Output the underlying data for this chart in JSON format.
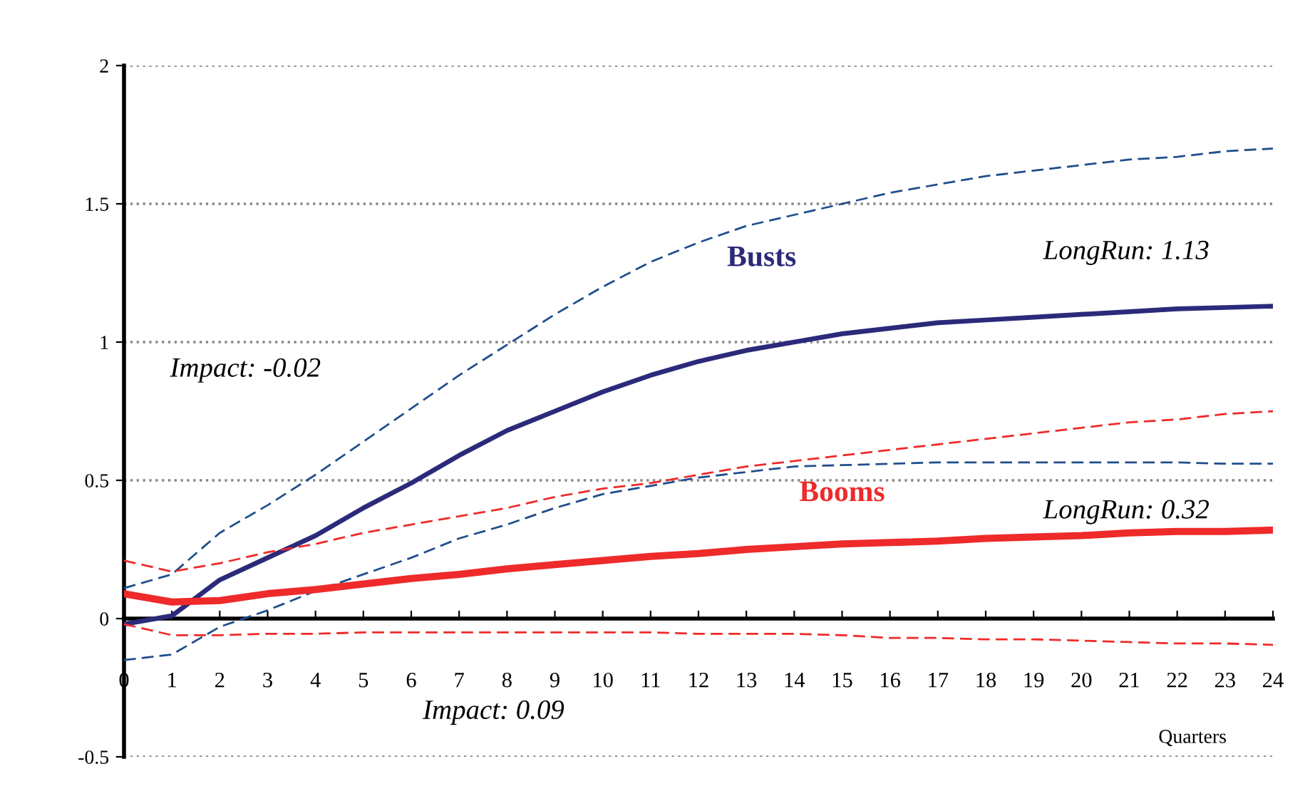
{
  "chart_data": {
    "type": "line",
    "xlabel": "Quarters",
    "x": [
      0,
      1,
      2,
      3,
      4,
      5,
      6,
      7,
      8,
      9,
      10,
      11,
      12,
      13,
      14,
      15,
      16,
      17,
      18,
      19,
      20,
      21,
      22,
      23,
      24
    ],
    "xlim": [
      0,
      24
    ],
    "xticks": [
      0,
      1,
      2,
      3,
      4,
      5,
      6,
      7,
      8,
      9,
      10,
      11,
      12,
      13,
      14,
      15,
      16,
      17,
      18,
      19,
      20,
      21,
      22,
      23,
      24
    ],
    "ylim": [
      -0.5,
      2
    ],
    "yticks": [
      -0.5,
      0,
      0.5,
      1,
      1.5,
      2
    ],
    "grid": "y",
    "line_style": "solid",
    "series": [
      {
        "color": "#1f4e8c",
        "line_style": "dashed",
        "values": [
          0.11,
          0.16,
          0.31,
          0.41,
          0.52,
          0.64,
          0.76,
          0.88,
          0.99,
          1.1,
          1.2,
          1.29,
          1.36,
          1.42,
          1.46,
          1.5,
          1.54,
          1.57,
          1.6,
          1.62,
          1.64,
          1.66,
          1.67,
          1.69,
          1.7
        ]
      },
      {
        "color": "#1f4e8c",
        "line_style": "dashed",
        "values": [
          -0.15,
          -0.13,
          -0.03,
          0.03,
          0.1,
          0.16,
          0.22,
          0.29,
          0.34,
          0.4,
          0.45,
          0.48,
          0.51,
          0.53,
          0.55,
          0.555,
          0.56,
          0.565,
          0.565,
          0.565,
          0.565,
          0.565,
          0.565,
          0.56,
          0.56
        ]
      },
      {
        "name": "Busts",
        "color": "#2b2a7a",
        "values": [
          -0.02,
          0.01,
          0.14,
          0.22,
          0.3,
          0.4,
          0.49,
          0.59,
          0.68,
          0.75,
          0.82,
          0.88,
          0.93,
          0.97,
          1.0,
          1.03,
          1.05,
          1.07,
          1.08,
          1.09,
          1.1,
          1.11,
          1.12,
          1.125,
          1.13
        ]
      },
      {
        "color": "#ee2a2a",
        "line_style": "dashed",
        "values": [
          0.21,
          0.17,
          0.2,
          0.24,
          0.27,
          0.31,
          0.34,
          0.37,
          0.4,
          0.44,
          0.47,
          0.49,
          0.52,
          0.55,
          0.57,
          0.59,
          0.61,
          0.63,
          0.65,
          0.67,
          0.69,
          0.71,
          0.72,
          0.74,
          0.75
        ]
      },
      {
        "color": "#ee2a2a",
        "line_style": "dashed",
        "values": [
          -0.02,
          -0.06,
          -0.06,
          -0.055,
          -0.055,
          -0.05,
          -0.05,
          -0.05,
          -0.05,
          -0.05,
          -0.05,
          -0.05,
          -0.055,
          -0.055,
          -0.055,
          -0.06,
          -0.07,
          -0.07,
          -0.075,
          -0.075,
          -0.08,
          -0.085,
          -0.09,
          -0.09,
          -0.095
        ]
      },
      {
        "name": "Booms",
        "color": "#ee2a2a",
        "values": [
          0.09,
          0.06,
          0.065,
          0.09,
          0.105,
          0.125,
          0.145,
          0.16,
          0.18,
          0.195,
          0.21,
          0.225,
          0.235,
          0.25,
          0.26,
          0.27,
          0.275,
          0.28,
          0.29,
          0.295,
          0.3,
          0.31,
          0.315,
          0.315,
          0.32
        ]
      }
    ],
    "annotations": [
      "Impact: -0.02",
      "LongRun: 1.13",
      "Impact: 0.09",
      "LongRun: 0.32"
    ]
  }
}
